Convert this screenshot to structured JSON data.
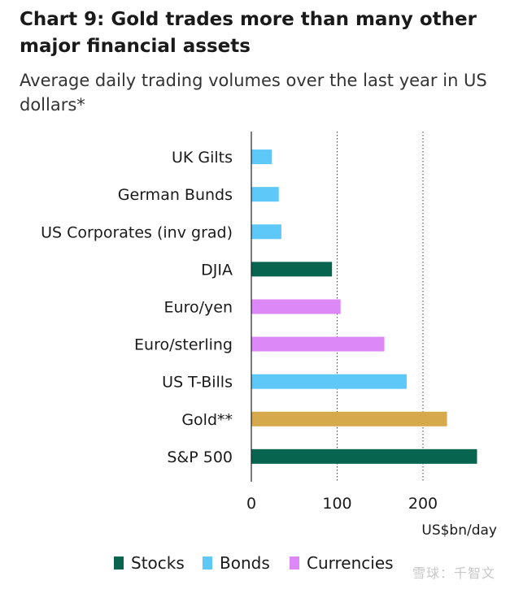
{
  "header": {
    "title": "Chart 9: Gold trades more than many other major financial assets",
    "subtitle": "Average daily trading volumes over the last year in US dollars*"
  },
  "colors": {
    "Stocks": "#06644f",
    "Bonds": "#5ec8f9",
    "Currencies": "#dc88f7",
    "Gold": "#d6a94d"
  },
  "legend": {
    "items": [
      {
        "label": "Stocks",
        "color": "#06644f"
      },
      {
        "label": "Bonds",
        "color": "#5ec8f9"
      },
      {
        "label": "Currencies",
        "color": "#dc88f7"
      }
    ]
  },
  "watermark": "雪球：千智文",
  "chart_data": {
    "type": "bar",
    "orientation": "horizontal",
    "title": "Chart 9: Gold trades more than many other major financial assets",
    "subtitle": "Average daily trading volumes over the last year in US dollars*",
    "xlabel": "US$bn/day",
    "ylabel": "",
    "xlim": [
      0,
      265
    ],
    "xticks": [
      0,
      100,
      200
    ],
    "grid": "vertical dotted",
    "legend_position": "bottom",
    "categories": [
      "UK Gilts",
      "German Bunds",
      "US Corporates (inv grad)",
      "DJIA",
      "Euro/yen",
      "Euro/sterling",
      "US T-Bills",
      "Gold**",
      "S&P 500"
    ],
    "values": [
      24,
      32,
      35,
      94,
      104,
      155,
      181,
      228,
      263
    ],
    "groups": [
      "Bonds",
      "Bonds",
      "Bonds",
      "Stocks",
      "Currencies",
      "Currencies",
      "Bonds",
      "Gold",
      "Stocks"
    ]
  }
}
